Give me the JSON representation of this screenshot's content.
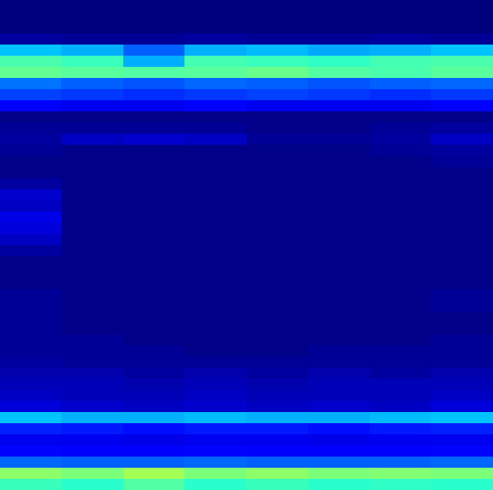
{
  "chart_data": {
    "type": "heatmap",
    "color": "jet",
    "tick_labels": false,
    "clim": [
      0,
      1
    ],
    "cells": [
      [
        0.0,
        0.0,
        0.0,
        0.0,
        0.0,
        0.0,
        0.0,
        0.0
      ],
      [
        0.0,
        0.0,
        0.0,
        0.0,
        0.0,
        0.0,
        0.0,
        0.0
      ],
      [
        0.0,
        0.0,
        0.0,
        0.0,
        0.0,
        0.0,
        0.0,
        0.0
      ],
      [
        0.03,
        0.02,
        0.02,
        0.03,
        0.02,
        0.02,
        0.03,
        0.02
      ],
      [
        0.32,
        0.3,
        0.22,
        0.3,
        0.31,
        0.29,
        0.3,
        0.32
      ],
      [
        0.44,
        0.42,
        0.3,
        0.43,
        0.42,
        0.41,
        0.43,
        0.44
      ],
      [
        0.47,
        0.46,
        0.45,
        0.46,
        0.48,
        0.45,
        0.44,
        0.46
      ],
      [
        0.24,
        0.22,
        0.21,
        0.23,
        0.22,
        0.21,
        0.22,
        0.23
      ],
      [
        0.19,
        0.18,
        0.17,
        0.18,
        0.19,
        0.18,
        0.17,
        0.18
      ],
      [
        0.11,
        0.1,
        0.1,
        0.11,
        0.1,
        0.1,
        0.1,
        0.11
      ],
      [
        0.01,
        0.01,
        0.01,
        0.01,
        0.01,
        0.01,
        0.01,
        0.01
      ],
      [
        0.02,
        0.02,
        0.02,
        0.02,
        0.01,
        0.01,
        0.02,
        0.03
      ],
      [
        0.03,
        0.06,
        0.07,
        0.06,
        0.02,
        0.02,
        0.03,
        0.06
      ],
      [
        0.02,
        0.01,
        0.01,
        0.01,
        0.01,
        0.01,
        0.02,
        0.03
      ],
      [
        0.01,
        0.01,
        0.01,
        0.01,
        0.01,
        0.01,
        0.01,
        0.02
      ],
      [
        0.01,
        0.01,
        0.01,
        0.01,
        0.01,
        0.01,
        0.01,
        0.01
      ],
      [
        0.03,
        0.01,
        0.01,
        0.01,
        0.01,
        0.01,
        0.01,
        0.01
      ],
      [
        0.07,
        0.01,
        0.01,
        0.01,
        0.01,
        0.01,
        0.01,
        0.01
      ],
      [
        0.06,
        0.01,
        0.01,
        0.01,
        0.01,
        0.01,
        0.01,
        0.01
      ],
      [
        0.09,
        0.01,
        0.01,
        0.01,
        0.01,
        0.01,
        0.01,
        0.01
      ],
      [
        0.08,
        0.01,
        0.01,
        0.01,
        0.01,
        0.01,
        0.01,
        0.01
      ],
      [
        0.06,
        0.01,
        0.01,
        0.01,
        0.01,
        0.01,
        0.01,
        0.01
      ],
      [
        0.03,
        0.01,
        0.01,
        0.01,
        0.01,
        0.01,
        0.01,
        0.01
      ],
      [
        0.01,
        0.01,
        0.01,
        0.01,
        0.01,
        0.01,
        0.01,
        0.01
      ],
      [
        0.01,
        0.01,
        0.01,
        0.01,
        0.01,
        0.01,
        0.01,
        0.01
      ],
      [
        0.01,
        0.01,
        0.01,
        0.01,
        0.01,
        0.01,
        0.01,
        0.01
      ],
      [
        0.02,
        0.01,
        0.01,
        0.01,
        0.01,
        0.01,
        0.01,
        0.02
      ],
      [
        0.02,
        0.01,
        0.01,
        0.01,
        0.01,
        0.01,
        0.01,
        0.02
      ],
      [
        0.02,
        0.01,
        0.01,
        0.01,
        0.01,
        0.01,
        0.01,
        0.01
      ],
      [
        0.02,
        0.01,
        0.01,
        0.01,
        0.01,
        0.01,
        0.01,
        0.01
      ],
      [
        0.02,
        0.02,
        0.01,
        0.01,
        0.01,
        0.01,
        0.01,
        0.02
      ],
      [
        0.02,
        0.02,
        0.02,
        0.01,
        0.01,
        0.02,
        0.02,
        0.02
      ],
      [
        0.03,
        0.02,
        0.02,
        0.02,
        0.02,
        0.02,
        0.02,
        0.02
      ],
      [
        0.04,
        0.04,
        0.03,
        0.04,
        0.03,
        0.04,
        0.03,
        0.04
      ],
      [
        0.05,
        0.05,
        0.04,
        0.05,
        0.04,
        0.05,
        0.05,
        0.05
      ],
      [
        0.06,
        0.05,
        0.05,
        0.06,
        0.05,
        0.05,
        0.05,
        0.06
      ],
      [
        0.08,
        0.07,
        0.06,
        0.07,
        0.06,
        0.07,
        0.06,
        0.08
      ],
      [
        0.32,
        0.3,
        0.3,
        0.31,
        0.3,
        0.3,
        0.31,
        0.32
      ],
      [
        0.16,
        0.15,
        0.14,
        0.15,
        0.15,
        0.14,
        0.15,
        0.16
      ],
      [
        0.1,
        0.1,
        0.09,
        0.1,
        0.1,
        0.09,
        0.1,
        0.1
      ],
      [
        0.13,
        0.12,
        0.12,
        0.13,
        0.12,
        0.12,
        0.12,
        0.13
      ],
      [
        0.23,
        0.22,
        0.22,
        0.23,
        0.22,
        0.22,
        0.22,
        0.23
      ],
      [
        0.52,
        0.5,
        0.55,
        0.5,
        0.52,
        0.5,
        0.51,
        0.5
      ],
      [
        0.42,
        0.4,
        0.45,
        0.4,
        0.42,
        0.4,
        0.41,
        0.4
      ]
    ]
  }
}
